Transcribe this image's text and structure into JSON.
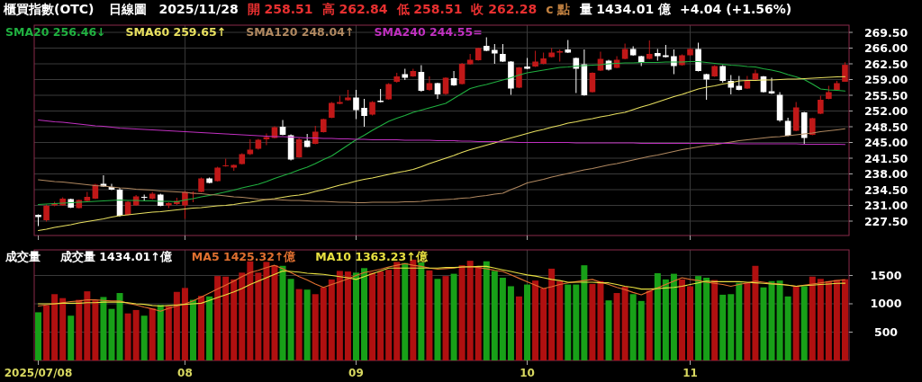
{
  "chart_data": [
    {
      "type": "candlestick",
      "title": "櫃買指數(OTC)",
      "subtitle": "日線圖",
      "annotations": [
        "2025/11/28",
        "開 258.51",
        "高 262.84",
        "低 258.51",
        "收 262.28",
        "c 點",
        "量 1434.01 億",
        "+4.04 (+1.56%)"
      ],
      "categories": [
        "2025/07/08",
        null,
        null,
        null,
        null,
        null,
        null,
        null,
        null,
        null,
        null,
        null,
        null,
        null,
        null,
        null,
        null,
        null,
        "08",
        null,
        null,
        null,
        null,
        null,
        null,
        null,
        null,
        null,
        null,
        null,
        null,
        null,
        null,
        null,
        null,
        null,
        null,
        null,
        null,
        "09",
        null,
        null,
        null,
        null,
        null,
        null,
        null,
        null,
        null,
        null,
        null,
        null,
        null,
        null,
        null,
        null,
        null,
        null,
        null,
        null,
        "10",
        null,
        null,
        null,
        null,
        null,
        null,
        null,
        null,
        null,
        null,
        null,
        null,
        null,
        null,
        null,
        null,
        null,
        null,
        null,
        "11",
        null,
        null,
        null,
        null,
        null,
        null,
        null,
        null,
        null,
        null,
        null,
        null,
        null,
        null,
        null,
        null,
        null,
        null,
        null
      ],
      "ohlc": [
        [
          228.9,
          229.0,
          226.4,
          228.4
        ],
        [
          227.7,
          231.2,
          227.4,
          230.9
        ],
        [
          231.0,
          231.8,
          230.8,
          231.4
        ],
        [
          231.0,
          232.8,
          230.9,
          232.5
        ],
        [
          232.4,
          232.5,
          230.4,
          230.5
        ],
        [
          230.4,
          232.3,
          230.3,
          232.2
        ],
        [
          232.0,
          234.0,
          231.9,
          232.9
        ],
        [
          232.5,
          235.8,
          232.4,
          235.6
        ],
        [
          235.8,
          237.7,
          235.1,
          235.2
        ],
        [
          235.1,
          235.8,
          234.4,
          234.5
        ],
        [
          234.5,
          234.9,
          228.5,
          228.7
        ],
        [
          228.9,
          232.0,
          228.8,
          231.8
        ],
        [
          231.0,
          233.3,
          230.9,
          233.0
        ],
        [
          232.9,
          233.4,
          232.1,
          232.8
        ],
        [
          232.5,
          234.0,
          232.3,
          233.6
        ],
        [
          233.4,
          233.6,
          230.8,
          230.9
        ],
        [
          231.0,
          231.7,
          230.4,
          231.5
        ],
        [
          231.3,
          232.7,
          231.1,
          232.0
        ],
        [
          231.0,
          234.2,
          228.0,
          234.0
        ],
        [
          233.7,
          234.1,
          231.7,
          233.8
        ],
        [
          234.0,
          237.2,
          233.9,
          237.0
        ],
        [
          237.0,
          237.2,
          235.9,
          236.0
        ],
        [
          236.4,
          239.6,
          236.3,
          239.4
        ],
        [
          239.7,
          241.4,
          239.6,
          239.9
        ],
        [
          239.4,
          240.1,
          238.7,
          240.0
        ],
        [
          240.2,
          242.6,
          240.1,
          242.4
        ],
        [
          242.4,
          245.7,
          242.2,
          243.4
        ],
        [
          243.6,
          245.8,
          243.4,
          245.6
        ],
        [
          245.7,
          247.0,
          244.4,
          246.2
        ],
        [
          246.0,
          248.6,
          245.9,
          248.4
        ],
        [
          248.5,
          250.0,
          246.6,
          246.7
        ],
        [
          246.6,
          246.8,
          241.0,
          241.2
        ],
        [
          241.7,
          246.0,
          241.6,
          245.7
        ],
        [
          245.4,
          246.9,
          243.9,
          244.0
        ],
        [
          244.7,
          248.7,
          244.6,
          247.4
        ],
        [
          247.3,
          250.3,
          247.2,
          250.2
        ],
        [
          250.5,
          254.0,
          250.4,
          253.8
        ],
        [
          253.6,
          255.4,
          253.5,
          254.0
        ],
        [
          254.4,
          256.7,
          254.3,
          255.0
        ],
        [
          255.0,
          256.7,
          250.2,
          252.2
        ],
        [
          252.7,
          254.7,
          248.5,
          250.9
        ],
        [
          251.2,
          254.2,
          251.0,
          254.0
        ],
        [
          254.3,
          256.9,
          253.9,
          254.0
        ],
        [
          254.6,
          258.2,
          254.5,
          258.0
        ],
        [
          258.5,
          260.5,
          258.3,
          259.7
        ],
        [
          260.2,
          261.4,
          258.9,
          259.4
        ],
        [
          259.7,
          261.4,
          259.6,
          260.9
        ],
        [
          260.7,
          262.2,
          256.3,
          256.5
        ],
        [
          256.7,
          259.7,
          256.5,
          258.2
        ],
        [
          258.2,
          258.3,
          254.7,
          255.7
        ],
        [
          255.8,
          259.5,
          255.6,
          259.4
        ],
        [
          259.3,
          260.9,
          257.6,
          257.7
        ],
        [
          258.0,
          262.7,
          257.9,
          262.5
        ],
        [
          262.4,
          264.7,
          262.3,
          263.4
        ],
        [
          263.3,
          266.1,
          263.2,
          266.0
        ],
        [
          266.5,
          268.4,
          265.3,
          265.4
        ],
        [
          265.6,
          266.9,
          262.5,
          264.8
        ],
        [
          264.7,
          266.9,
          262.9,
          263.0
        ],
        [
          263.0,
          263.1,
          255.6,
          257.0
        ],
        [
          257.2,
          261.8,
          257.1,
          261.7
        ],
        [
          261.9,
          263.8,
          261.3,
          261.4
        ],
        [
          261.9,
          265.4,
          261.8,
          263.0
        ],
        [
          262.5,
          265.0,
          262.4,
          263.7
        ],
        [
          264.0,
          266.0,
          263.9,
          265.0
        ],
        [
          265.0,
          265.7,
          263.0,
          265.3
        ],
        [
          265.7,
          267.8,
          264.9,
          265.0
        ],
        [
          263.8,
          263.9,
          256.0,
          261.4
        ],
        [
          262.4,
          265.7,
          255.4,
          255.5
        ],
        [
          256.2,
          260.6,
          256.1,
          260.5
        ],
        [
          261.0,
          265.2,
          260.9,
          263.6
        ],
        [
          263.2,
          263.4,
          261.0,
          261.2
        ],
        [
          261.6,
          264.2,
          261.5,
          263.4
        ],
        [
          263.6,
          267.0,
          263.5,
          265.8
        ],
        [
          265.8,
          266.4,
          264.3,
          264.4
        ],
        [
          264.2,
          264.3,
          262.0,
          262.7
        ],
        [
          263.6,
          267.7,
          263.5,
          264.7
        ],
        [
          264.9,
          265.8,
          263.2,
          264.2
        ],
        [
          264.4,
          266.7,
          263.9,
          264.0
        ],
        [
          264.2,
          265.7,
          260.2,
          262.0
        ],
        [
          262.2,
          264.6,
          262.1,
          264.4
        ],
        [
          264.4,
          266.0,
          264.3,
          265.8
        ],
        [
          265.8,
          267.2,
          260.8,
          260.9
        ],
        [
          260.2,
          260.3,
          254.5,
          259.0
        ],
        [
          259.7,
          262.2,
          259.6,
          262.0
        ],
        [
          262.0,
          262.2,
          258.3,
          258.7
        ],
        [
          258.7,
          260.0,
          255.7,
          257.2
        ],
        [
          257.6,
          259.8,
          256.6,
          256.7
        ],
        [
          257.0,
          259.8,
          256.9,
          258.7
        ],
        [
          259.0,
          261.2,
          258.9,
          260.4
        ],
        [
          259.7,
          259.8,
          256.1,
          256.2
        ],
        [
          256.4,
          259.4,
          255.8,
          255.9
        ],
        [
          255.6,
          256.2,
          249.6,
          249.9
        ],
        [
          249.8,
          250.5,
          246.4,
          246.5
        ],
        [
          247.6,
          254.0,
          247.5,
          252.8
        ],
        [
          251.7,
          251.8,
          244.7,
          246.0
        ],
        [
          246.7,
          250.5,
          246.6,
          250.4
        ],
        [
          251.4,
          255.4,
          251.3,
          254.5
        ],
        [
          254.7,
          257.6,
          254.6,
          256.2
        ],
        [
          256.7,
          258.7,
          256.6,
          258.2
        ],
        [
          258.51,
          262.84,
          258.51,
          262.28
        ]
      ],
      "series": [
        {
          "name": "SMA20 256.46↓",
          "type": "line",
          "color": "#20b040",
          "values": [
            231.2,
            231.3,
            231.4,
            231.5,
            231.6,
            231.7,
            231.8,
            231.9,
            232.0,
            232.1,
            232.2,
            232.1,
            232.1,
            232.0,
            232.0,
            231.9,
            231.9,
            231.8,
            232.2,
            232.5,
            232.9,
            233.2,
            233.6,
            234.0,
            234.4,
            234.9,
            235.3,
            235.7,
            236.3,
            237.0,
            237.6,
            238.2,
            238.9,
            239.5,
            240.3,
            241.2,
            242.0,
            243.2,
            244.4,
            245.6,
            246.6,
            247.7,
            248.7,
            249.7,
            250.4,
            251.0,
            251.7,
            252.2,
            252.7,
            253.2,
            253.7,
            254.8,
            255.9,
            257.0,
            257.5,
            257.9,
            258.4,
            258.9,
            259.4,
            260.0,
            260.5,
            260.8,
            261.1,
            261.4,
            261.7,
            261.8,
            262.0,
            262.1,
            262.2,
            262.3,
            262.5,
            262.6,
            262.7,
            262.7,
            262.8,
            262.8,
            262.8,
            262.9,
            262.9,
            262.9,
            263.0,
            263.0,
            262.8,
            262.6,
            262.4,
            262.2,
            262.1,
            261.9,
            261.8,
            261.4,
            261.1,
            260.7,
            260.1,
            259.6,
            259.0,
            258.0,
            256.9,
            256.7,
            256.6,
            256.46
          ]
        },
        {
          "name": "SMA60 259.65↑",
          "type": "line",
          "color": "#e8e060",
          "values": [
            225.4,
            225.7,
            226.1,
            226.4,
            226.7,
            227.1,
            227.4,
            227.7,
            228.0,
            228.4,
            228.7,
            228.9,
            229.1,
            229.3,
            229.5,
            229.6,
            229.8,
            230.0,
            230.2,
            230.4,
            230.5,
            230.7,
            230.9,
            231.0,
            231.2,
            231.5,
            231.7,
            232.0,
            232.3,
            232.5,
            232.8,
            233.1,
            233.3,
            233.6,
            234.1,
            234.5,
            235.0,
            235.5,
            235.9,
            236.4,
            236.8,
            237.1,
            237.5,
            237.9,
            238.3,
            238.6,
            239.0,
            239.6,
            240.3,
            240.9,
            241.5,
            242.1,
            242.8,
            243.4,
            243.9,
            244.4,
            244.9,
            245.5,
            246.0,
            246.5,
            247.0,
            247.5,
            247.9,
            248.4,
            248.8,
            249.3,
            249.6,
            250.0,
            250.3,
            250.7,
            251.0,
            251.4,
            251.7,
            252.3,
            252.9,
            253.4,
            254.0,
            254.6,
            255.2,
            255.7,
            256.3,
            256.9,
            257.3,
            257.6,
            258.0,
            258.3,
            258.7,
            258.8,
            258.8,
            258.9,
            258.9,
            259.0,
            259.1,
            259.1,
            259.2,
            259.3,
            259.4,
            259.5,
            259.6,
            259.65
          ]
        },
        {
          "name": "SMA120 248.04↑",
          "type": "line",
          "color": "#b08860",
          "values": [
            236.7,
            236.5,
            236.3,
            236.2,
            236.0,
            235.8,
            235.6,
            235.4,
            235.3,
            235.1,
            234.9,
            234.8,
            234.6,
            234.5,
            234.4,
            234.2,
            234.1,
            234.0,
            233.9,
            233.7,
            233.6,
            233.4,
            233.3,
            233.1,
            232.9,
            232.8,
            232.6,
            232.4,
            232.3,
            232.3,
            232.2,
            232.1,
            232.1,
            232.0,
            231.9,
            231.9,
            231.8,
            231.7,
            231.7,
            231.6,
            231.6,
            231.7,
            231.7,
            231.7,
            231.7,
            231.8,
            231.8,
            231.9,
            232.1,
            232.2,
            232.3,
            232.4,
            232.6,
            232.7,
            233.0,
            233.2,
            233.5,
            233.7,
            234.5,
            235.2,
            236.0,
            236.4,
            236.8,
            237.3,
            237.7,
            238.1,
            238.5,
            238.9,
            239.2,
            239.6,
            240.0,
            240.3,
            240.7,
            241.1,
            241.5,
            241.9,
            242.2,
            242.6,
            243.0,
            243.4,
            243.7,
            244.0,
            244.3,
            244.5,
            244.8,
            245.1,
            245.4,
            245.6,
            245.8,
            246.0,
            246.2,
            246.3,
            246.5,
            246.7,
            246.9,
            247.1,
            247.4,
            247.6,
            247.8,
            248.04
          ]
        },
        {
          "name": "SMA240 244.55=",
          "type": "line",
          "color": "#c030c0",
          "values": [
            250.0,
            249.8,
            249.6,
            249.5,
            249.3,
            249.1,
            248.9,
            248.7,
            248.6,
            248.4,
            248.2,
            248.1,
            248.0,
            247.9,
            247.8,
            247.7,
            247.6,
            247.5,
            247.4,
            247.3,
            247.2,
            247.1,
            247.0,
            246.9,
            246.8,
            246.7,
            246.6,
            246.5,
            246.4,
            246.3,
            246.3,
            246.2,
            246.1,
            246.0,
            246.0,
            245.9,
            245.9,
            245.8,
            245.8,
            245.7,
            245.7,
            245.6,
            245.6,
            245.6,
            245.6,
            245.5,
            245.5,
            245.5,
            245.5,
            245.4,
            245.4,
            245.4,
            245.3,
            245.3,
            245.2,
            245.2,
            245.2,
            245.1,
            245.1,
            245.0,
            245.0,
            245.0,
            245.0,
            245.0,
            245.0,
            245.0,
            244.9,
            244.9,
            244.9,
            244.9,
            244.9,
            244.9,
            244.9,
            244.9,
            244.8,
            244.8,
            244.8,
            244.8,
            244.8,
            244.8,
            244.8,
            244.8,
            244.8,
            244.8,
            244.8,
            244.8,
            244.7,
            244.7,
            244.7,
            244.7,
            244.7,
            244.7,
            244.7,
            244.7,
            244.6,
            244.6,
            244.6,
            244.6,
            244.6,
            244.55
          ]
        }
      ],
      "ylim": [
        224.3,
        271.1
      ],
      "yticks": [
        {
          "value": 227.5,
          "label": "227.50"
        },
        {
          "value": 231,
          "label": "231.00"
        },
        {
          "value": 234.5,
          "label": "234.50"
        },
        {
          "value": 238,
          "label": "238.00"
        },
        {
          "value": 241.5,
          "label": "241.50"
        },
        {
          "value": 245,
          "label": "245.00"
        },
        {
          "value": 248.5,
          "label": "248.50"
        },
        {
          "value": 252,
          "label": "252.00"
        },
        {
          "value": 255.5,
          "label": "255.50"
        },
        {
          "value": 259,
          "label": "259.00"
        },
        {
          "value": 262.5,
          "label": "262.50"
        },
        {
          "value": 266,
          "label": "266.00"
        },
        {
          "value": 269.5,
          "label": "269.50"
        }
      ],
      "grid": true,
      "legend": "top left",
      "tick_labels": "y"
    },
    {
      "type": "bar",
      "title": "成交量",
      "annotations": [
        "成交量 1434.01↑億"
      ],
      "categories": [
        "2025/07/08",
        null,
        null,
        null,
        null,
        null,
        null,
        null,
        null,
        null,
        null,
        null,
        null,
        null,
        null,
        null,
        null,
        null,
        "08",
        null,
        null,
        null,
        null,
        null,
        null,
        null,
        null,
        null,
        null,
        null,
        null,
        null,
        null,
        null,
        null,
        null,
        null,
        null,
        null,
        "09",
        null,
        null,
        null,
        null,
        null,
        null,
        null,
        null,
        null,
        null,
        null,
        null,
        null,
        null,
        null,
        null,
        null,
        null,
        null,
        null,
        "10",
        null,
        null,
        null,
        null,
        null,
        null,
        null,
        null,
        null,
        null,
        null,
        null,
        null,
        null,
        null,
        null,
        null,
        null,
        null,
        "11",
        null,
        null,
        null,
        null,
        null,
        null,
        null,
        null,
        null,
        null,
        null,
        null,
        null,
        null,
        null,
        null,
        null,
        null,
        null
      ],
      "values": [
        850,
        970,
        1170,
        1100,
        790,
        1070,
        1220,
        1060,
        1120,
        910,
        1190,
        830,
        890,
        790,
        920,
        980,
        960,
        1210,
        1280,
        1070,
        1140,
        1130,
        1490,
        1480,
        1430,
        1550,
        1750,
        1550,
        1740,
        1680,
        1670,
        1440,
        1260,
        1250,
        1170,
        1290,
        1430,
        1580,
        1570,
        1550,
        1630,
        1550,
        1570,
        1600,
        1740,
        1720,
        1780,
        1730,
        1590,
        1440,
        1490,
        1530,
        1680,
        1760,
        1650,
        1750,
        1580,
        1460,
        1310,
        1130,
        1340,
        1410,
        1270,
        1620,
        1400,
        1340,
        1340,
        1680,
        1350,
        1400,
        1060,
        1190,
        1300,
        1170,
        1050,
        1230,
        1540,
        1430,
        1530,
        1430,
        1310,
        1490,
        1460,
        1420,
        1160,
        1170,
        1370,
        1370,
        1670,
        1290,
        1400,
        1410,
        1130,
        1310,
        1310,
        1480,
        1440,
        1400,
        1420,
        1434.01
      ],
      "colors": [
        "#18a018",
        "#b01010",
        "#b01010",
        "#b01010",
        "#18a018",
        "#b01010",
        "#b01010",
        "#b01010",
        "#18a018",
        "#18a018",
        "#18a018",
        "#b01010",
        "#b01010",
        "#18a018",
        "#b01010",
        "#18a018",
        "#b01010",
        "#b01010",
        "#b01010",
        "#18a018",
        "#b01010",
        "#18a018",
        "#b01010",
        "#b01010",
        "#b01010",
        "#b01010",
        "#b01010",
        "#b01010",
        "#b01010",
        "#b01010",
        "#18a018",
        "#18a018",
        "#b01010",
        "#18a018",
        "#b01010",
        "#b01010",
        "#b01010",
        "#b01010",
        "#b01010",
        "#18a018",
        "#18a018",
        "#b01010",
        "#b01010",
        "#b01010",
        "#b01010",
        "#18a018",
        "#b01010",
        "#18a018",
        "#b01010",
        "#18a018",
        "#b01010",
        "#18a018",
        "#b01010",
        "#b01010",
        "#b01010",
        "#18a018",
        "#18a018",
        "#18a018",
        "#18a018",
        "#b01010",
        "#18a018",
        "#b01010",
        "#b01010",
        "#b01010",
        "#b01010",
        "#18a018",
        "#18a018",
        "#18a018",
        "#b01010",
        "#b01010",
        "#18a018",
        "#b01010",
        "#b01010",
        "#18a018",
        "#18a018",
        "#b01010",
        "#18a018",
        "#18a018",
        "#18a018",
        "#b01010",
        "#b01010",
        "#18a018",
        "#18a018",
        "#b01010",
        "#18a018",
        "#18a018",
        "#18a018",
        "#b01010",
        "#b01010",
        "#18a018",
        "#18a018",
        "#18a018",
        "#18a018",
        "#b01010",
        "#18a018",
        "#b01010",
        "#b01010",
        "#b01010",
        "#b01010",
        "#b01010"
      ],
      "series": [
        {
          "name": "MA5 1425.32↑億",
          "type": "line",
          "color": "#e07030",
          "values": [
            960,
            980,
            1000,
            1020,
            1040,
            1050,
            1070,
            1070,
            1060,
            1050,
            1050,
            1010,
            980,
            940,
            910,
            870,
            920,
            960,
            1000,
            1050,
            1120,
            1190,
            1260,
            1330,
            1400,
            1480,
            1550,
            1590,
            1640,
            1680,
            1620,
            1550,
            1480,
            1420,
            1350,
            1290,
            1340,
            1390,
            1440,
            1500,
            1550,
            1580,
            1610,
            1650,
            1680,
            1710,
            1680,
            1660,
            1630,
            1610,
            1620,
            1630,
            1650,
            1660,
            1640,
            1620,
            1590,
            1570,
            1510,
            1450,
            1390,
            1330,
            1270,
            1300,
            1340,
            1370,
            1390,
            1410,
            1430,
            1380,
            1340,
            1290,
            1250,
            1200,
            1160,
            1220,
            1280,
            1340,
            1400,
            1460,
            1430,
            1410,
            1380,
            1360,
            1340,
            1310,
            1340,
            1370,
            1400,
            1380,
            1360,
            1350,
            1330,
            1310,
            1330,
            1350,
            1370,
            1390,
            1410,
            1425.32
          ]
        },
        {
          "name": "MA10 1363.23↑億",
          "type": "line",
          "color": "#e8e040",
          "values": [
            1000,
            1000,
            1000,
            1010,
            1010,
            1010,
            1020,
            1020,
            1030,
            1030,
            1030,
            1020,
            1000,
            990,
            970,
            960,
            970,
            980,
            990,
            1000,
            1010,
            1060,
            1110,
            1160,
            1210,
            1270,
            1340,
            1400,
            1460,
            1520,
            1580,
            1570,
            1560,
            1540,
            1530,
            1520,
            1500,
            1480,
            1460,
            1430,
            1480,
            1530,
            1580,
            1630,
            1630,
            1630,
            1630,
            1630,
            1630,
            1630,
            1640,
            1640,
            1650,
            1650,
            1660,
            1660,
            1630,
            1600,
            1570,
            1540,
            1510,
            1490,
            1460,
            1430,
            1410,
            1380,
            1380,
            1380,
            1380,
            1370,
            1370,
            1340,
            1310,
            1290,
            1260,
            1260,
            1270,
            1280,
            1290,
            1310,
            1340,
            1370,
            1400,
            1390,
            1390,
            1390,
            1390,
            1380,
            1370,
            1360,
            1350,
            1340,
            1330,
            1310,
            1320,
            1330,
            1340,
            1350,
            1360,
            1363.23
          ]
        }
      ],
      "ylim": [
        0,
        1952
      ],
      "yticks": [
        500,
        1000,
        1500
      ],
      "grid": true,
      "legend": "top left"
    }
  ]
}
